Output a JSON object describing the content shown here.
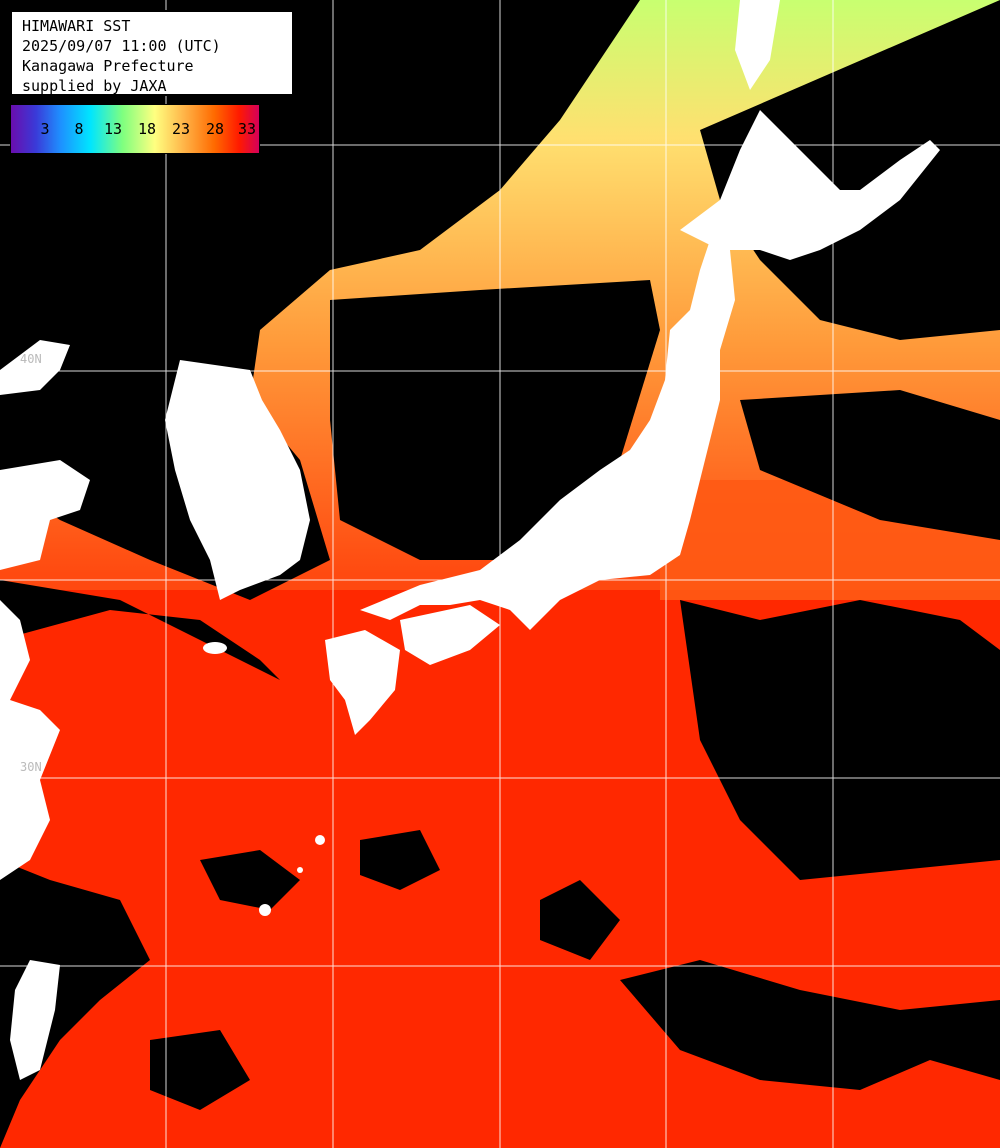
{
  "header": {
    "title": "HIMAWARI SST",
    "datetime": "2025/09/07 11:00 (UTC)",
    "region": "Kanagawa Prefecture",
    "credit": "supplied by JAXA"
  },
  "colorbar": {
    "ticks": [
      "3",
      "8",
      "13",
      "18",
      "23",
      "28",
      "33"
    ],
    "gradient_colors": [
      "#6a0dad",
      "#1e90ff",
      "#00e5ff",
      "#7fff7f",
      "#ffff80",
      "#ffb347",
      "#ff6a00",
      "#ff1a00",
      "#d4005a"
    ]
  },
  "grid_labels": {
    "lat_a": "40N",
    "lat_b": "30N"
  },
  "colors": {
    "land": "#ffffff",
    "cloud": "#000000",
    "warm_sea": "#ff2a00",
    "mid_sea": "#ff8c2a",
    "cool_sea": "#ffd070",
    "cold_sea": "#b8ff70",
    "grid": "#ffffff"
  }
}
